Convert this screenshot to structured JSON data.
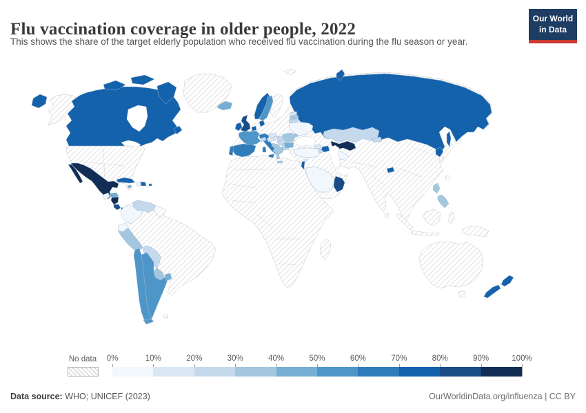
{
  "header": {
    "title": "Flu vaccination coverage in older people, 2022",
    "subtitle": "This shows the share of the target elderly population who received flu vaccination during the flu season or year.",
    "logo": {
      "line1": "Our World",
      "line2": "in Data"
    }
  },
  "legend": {
    "no_data_label": "No data",
    "ticks": [
      "0%",
      "10%",
      "20%",
      "30%",
      "40%",
      "50%",
      "60%",
      "70%",
      "80%",
      "90%",
      "100%"
    ]
  },
  "footer": {
    "source_label": "Data source:",
    "source_value": " WHO; UNICEF (2023)",
    "credit": "OurWorldinData.org/influenza | CC BY"
  },
  "colors": {
    "brand_navy": "#1d3d63",
    "brand_red": "#cb3a31",
    "title_text": "#3a3a3a",
    "subtitle_text": "#555555",
    "tick_text": "#5b5b5b",
    "hatch_line": "#d9d9d9"
  },
  "chart_data": {
    "type": "choropleth",
    "title": "Flu vaccination coverage in older people, 2022",
    "unit": "Share of target elderly population receiving flu vaccination (%)",
    "legend_range": [
      0,
      100
    ],
    "bins": [
      "0-10%",
      "10-20%",
      "20-30%",
      "30-40%",
      "40-50%",
      "50-60%",
      "60-70%",
      "70-80%",
      "80-90%",
      "90-100%"
    ],
    "bin_colors": [
      "#f2f7fd",
      "#dbe7f3",
      "#c5d9ed",
      "#a3c7df",
      "#75afd4",
      "#4e95c8",
      "#2e7cba",
      "#1562ac",
      "#1a4c86",
      "#132e55"
    ],
    "no_data": {
      "label": "No data",
      "style": "diagonal-hatch",
      "countries": [
        "United States",
        "Greenland",
        "Brazil",
        "Guyana",
        "Suriname",
        "Germany",
        "Poland",
        "Finland",
        "Belarus",
        "Bosnia and Herzegovina",
        "all countries in Africa",
        "China",
        "Mongolia",
        "India",
        "Pakistan",
        "Afghanistan",
        "Iran",
        "Iraq",
        "Syria",
        "Jordan",
        "Yemen",
        "Japan",
        "Taiwan",
        "Sri Lanka",
        "Myanmar",
        "Thailand",
        "Vietnam",
        "Laos",
        "Cambodia",
        "Malaysia",
        "Indonesia",
        "Papua New Guinea",
        "Australia"
      ]
    },
    "countries": {
      "canada": {
        "label": "Canada",
        "bin": "70-80%",
        "color": "#1562ac"
      },
      "mexico": {
        "label": "Mexico",
        "bin": "90-100%",
        "color": "#132e55"
      },
      "cuba": {
        "label": "Cuba",
        "bin": "70-80%",
        "color": "#1562ac"
      },
      "jamaica": {
        "label": "Jamaica",
        "bin": "40-50%",
        "color": "#75afd4"
      },
      "haiti": {
        "label": "Haiti",
        "bin": "0-10%",
        "color": "#f2f7fd"
      },
      "dominican_republic": {
        "label": "Dominican Republic",
        "bin": "70-80%",
        "color": "#1562ac"
      },
      "puerto_rico": {
        "label": "Puerto Rico",
        "bin": "70-80%",
        "color": "#1562ac"
      },
      "guatemala": {
        "label": "Guatemala",
        "bin": "0-10%",
        "color": "#f2f7fd"
      },
      "honduras": {
        "label": "Honduras",
        "bin": "40-50%",
        "color": "#75afd4"
      },
      "nicaragua": {
        "label": "Nicaragua",
        "bin": "90-100%",
        "color": "#132e55"
      },
      "costa_rica": {
        "label": "Costa Rica",
        "bin": "80-90%",
        "color": "#1a4c86"
      },
      "panama": {
        "label": "Panama",
        "bin": "70-80%",
        "color": "#1562ac"
      },
      "venezuela": {
        "label": "Venezuela",
        "bin": "20-30%",
        "color": "#c5d9ed"
      },
      "colombia": {
        "label": "Colombia",
        "bin": "0-10%",
        "color": "#f2f7fd"
      },
      "ecuador": {
        "label": "Ecuador",
        "bin": "0-10%",
        "color": "#f2f7fd"
      },
      "peru": {
        "label": "Peru",
        "bin": "30-40%",
        "color": "#a3c7df"
      },
      "bolivia": {
        "label": "Bolivia",
        "bin": "20-30%",
        "color": "#c5d9ed"
      },
      "paraguay": {
        "label": "Paraguay",
        "bin": "30-40%",
        "color": "#a3c7df"
      },
      "chile": {
        "label": "Chile",
        "bin": "50-60%",
        "color": "#4e95c8"
      },
      "argentina": {
        "label": "Argentina",
        "bin": "50-60%",
        "color": "#4e95c8"
      },
      "uruguay": {
        "label": "Uruguay",
        "bin": "40-50%",
        "color": "#75afd4"
      },
      "iceland": {
        "label": "Iceland",
        "bin": "40-50%",
        "color": "#75afd4"
      },
      "united_kingdom": {
        "label": "United Kingdom",
        "bin": "80-90%",
        "color": "#1a4c86"
      },
      "ireland": {
        "label": "Ireland",
        "bin": "70-80%",
        "color": "#1562ac"
      },
      "norway": {
        "label": "Norway",
        "bin": "70-80%",
        "color": "#1562ac"
      },
      "sweden": {
        "label": "Sweden",
        "bin": "50-60%",
        "color": "#4e95c8"
      },
      "denmark": {
        "label": "Denmark",
        "bin": "70-80%",
        "color": "#1562ac"
      },
      "netherlands": {
        "label": "Netherlands",
        "bin": "70-80%",
        "color": "#1562ac"
      },
      "belgium": {
        "label": "Belgium",
        "bin": "50-60%",
        "color": "#4e95c8"
      },
      "france": {
        "label": "France",
        "bin": "50-60%",
        "color": "#4e95c8"
      },
      "spain": {
        "label": "Spain",
        "bin": "60-70%",
        "color": "#2e7cba"
      },
      "portugal": {
        "label": "Portugal",
        "bin": "60-70%",
        "color": "#2e7cba"
      },
      "italy": {
        "label": "Italy",
        "bin": "60-70%",
        "color": "#2e7cba"
      },
      "switzerland": {
        "label": "Switzerland",
        "bin": "20-30%",
        "color": "#c5d9ed"
      },
      "austria": {
        "label": "Austria",
        "bin": "10-20%",
        "color": "#dbe7f3"
      },
      "czechia": {
        "label": "Czechia",
        "bin": "10-20%",
        "color": "#dbe7f3"
      },
      "slovakia": {
        "label": "Slovakia",
        "bin": "20-30%",
        "color": "#c5d9ed"
      },
      "hungary": {
        "label": "Hungary",
        "bin": "20-30%",
        "color": "#c5d9ed"
      },
      "croatia": {
        "label": "Croatia",
        "bin": "30-40%",
        "color": "#a3c7df"
      },
      "serbia": {
        "label": "Serbia",
        "bin": "20-30%",
        "color": "#c5d9ed"
      },
      "romania": {
        "label": "Romania",
        "bin": "30-40%",
        "color": "#a3c7df"
      },
      "moldova": {
        "label": "Moldova",
        "bin": "30-40%",
        "color": "#a3c7df"
      },
      "bulgaria": {
        "label": "Bulgaria",
        "bin": "40-50%",
        "color": "#75afd4"
      },
      "greece": {
        "label": "Greece",
        "bin": "30-40%",
        "color": "#a3c7df"
      },
      "estonia": {
        "label": "Estonia",
        "bin": "10-20%",
        "color": "#dbe7f3"
      },
      "latvia": {
        "label": "Latvia",
        "bin": "30-40%",
        "color": "#a3c7df"
      },
      "lithuania": {
        "label": "Lithuania",
        "bin": "20-30%",
        "color": "#c5d9ed"
      },
      "ukraine": {
        "label": "Ukraine",
        "bin": "0-10%",
        "color": "#f2f7fd"
      },
      "turkey": {
        "label": "Turkey",
        "bin": "0-10%",
        "color": "#f2f7fd"
      },
      "cyprus": {
        "label": "Cyprus",
        "bin": "0-10%",
        "color": "#f2f7fd"
      },
      "georgia": {
        "label": "Georgia",
        "bin": "10-20%",
        "color": "#dbe7f3"
      },
      "armenia": {
        "label": "Armenia",
        "bin": "20-30%",
        "color": "#c5d9ed"
      },
      "azerbaijan": {
        "label": "Azerbaijan",
        "bin": "70-80%",
        "color": "#1562ac"
      },
      "israel": {
        "label": "Israel",
        "bin": "70-80%",
        "color": "#1562ac"
      },
      "saudi_arabia": {
        "label": "Saudi Arabia",
        "bin": "0-10%",
        "color": "#f2f7fd"
      },
      "oman": {
        "label": "Oman",
        "bin": "80-90%",
        "color": "#1a4c86"
      },
      "russia": {
        "label": "Russia",
        "bin": "70-80%",
        "color": "#1562ac"
      },
      "kazakhstan": {
        "label": "Kazakhstan",
        "bin": "20-30%",
        "color": "#c5d9ed"
      },
      "uzbekistan": {
        "label": "Uzbekistan",
        "bin": "90-100%",
        "color": "#132e55"
      },
      "turkmenistan": {
        "label": "Turkmenistan",
        "bin": "0-10%",
        "color": "#f2f7fd"
      },
      "kyrgyzstan": {
        "label": "Kyrgyzstan",
        "bin": "20-30%",
        "color": "#c5d9ed"
      },
      "bhutan": {
        "label": "Bhutan",
        "bin": "70-80%",
        "color": "#1562ac"
      },
      "south_korea": {
        "label": "South Korea",
        "bin": "70-80%",
        "color": "#1562ac"
      },
      "philippines": {
        "label": "Philippines",
        "bin": "30-40%",
        "color": "#a3c7df"
      },
      "new_zealand": {
        "label": "New Zealand",
        "bin": "70-80%",
        "color": "#1562ac"
      }
    }
  }
}
